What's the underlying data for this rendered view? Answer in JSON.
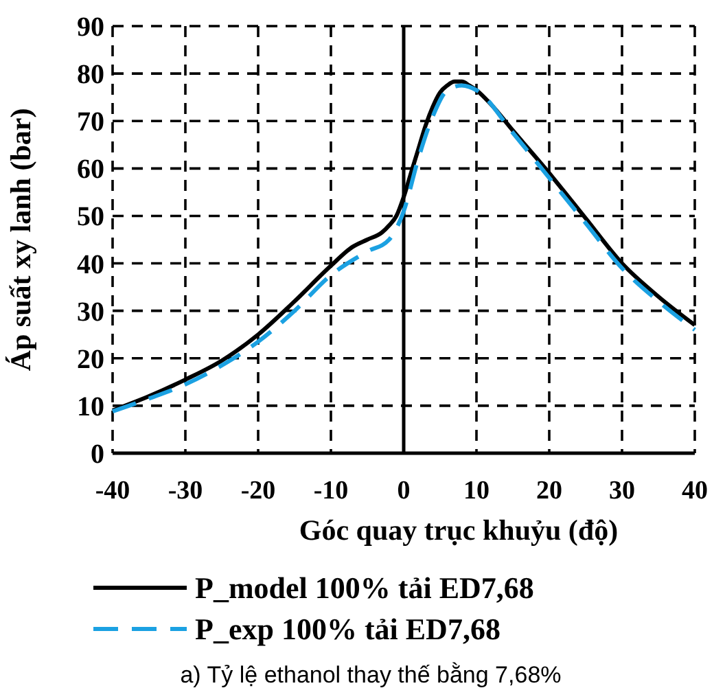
{
  "chart_data": {
    "type": "line",
    "xlabel": "Góc quay trục khuỷu (độ)",
    "ylabel": "Áp suất xy lanh (bar)",
    "annotations": [
      "a) Tỷ lệ ethanol thay thế bằng 7,68%"
    ],
    "xlim": [
      -40,
      40
    ],
    "xticks": [
      -40,
      -30,
      -20,
      -10,
      0,
      10,
      20,
      30,
      40
    ],
    "ylim": [
      0,
      90
    ],
    "yticks": [
      0,
      10,
      20,
      30,
      40,
      50,
      60,
      70,
      80,
      90
    ],
    "grid": true,
    "legend": "bottom",
    "marker": "none",
    "series": [
      {
        "name": "P_model 100% tải ED7,68",
        "color": "#000000",
        "line_style": "solid",
        "x": [
          -40,
          -35,
          -30,
          -25,
          -20,
          -15,
          -10,
          -7,
          -5,
          -3,
          -2,
          -1,
          0,
          1,
          2,
          3,
          4,
          5,
          6,
          7,
          8,
          9,
          10,
          12,
          15,
          20,
          25,
          30,
          35,
          40
        ],
        "values": [
          9,
          12,
          15.5,
          19.5,
          25,
          32,
          39.5,
          43.5,
          45,
          46.5,
          48,
          50,
          54,
          59,
          64,
          69,
          73,
          76,
          77.5,
          78.3,
          78.3,
          77.5,
          76.5,
          73.5,
          68,
          59,
          49.5,
          40,
          33,
          27
        ]
      },
      {
        "name": "P_exp 100% tải ED7,68",
        "color": "#1ba1e2",
        "line_style": "dashed",
        "x": [
          -40,
          -35,
          -30,
          -25,
          -20,
          -15,
          -10,
          -5,
          -2,
          0,
          2,
          4,
          6,
          8,
          10,
          15,
          20,
          25,
          30,
          35,
          40
        ],
        "values": [
          8.8,
          11.5,
          14.5,
          18.5,
          23.5,
          30,
          37.5,
          42.5,
          45,
          51,
          62,
          71,
          76.5,
          77.5,
          76.5,
          67.5,
          58,
          48.5,
          39,
          32,
          26
        ]
      }
    ]
  }
}
